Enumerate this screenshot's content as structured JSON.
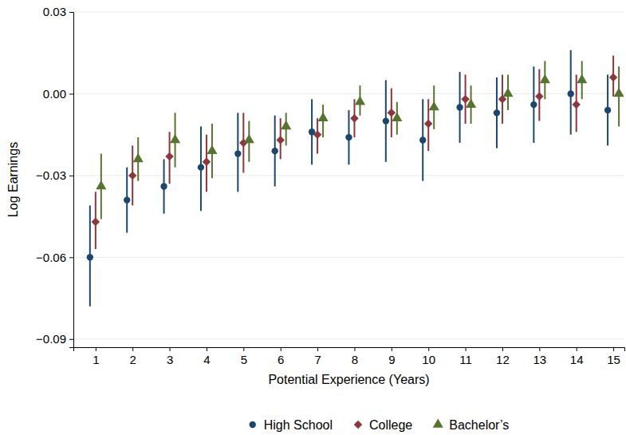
{
  "chart_data": {
    "type": "scatter",
    "x_label": "Potential Experience (Years)",
    "y_label": "Log Earnings",
    "x": [
      1,
      2,
      3,
      4,
      5,
      6,
      7,
      8,
      9,
      10,
      11,
      12,
      13,
      14,
      15
    ],
    "xlim": [
      0.4,
      15.3
    ],
    "xticks": [
      1,
      2,
      3,
      4,
      5,
      6,
      7,
      8,
      9,
      10,
      11,
      12,
      13,
      14,
      15
    ],
    "ylim": [
      -0.093,
      0.03
    ],
    "yticks": [
      {
        "value": -0.09,
        "label": "−0.09"
      },
      {
        "value": -0.06,
        "label": "−0.06"
      },
      {
        "value": -0.03,
        "label": "−0.03"
      },
      {
        "value": 0,
        "label": "0.00"
      },
      {
        "value": 0.03,
        "label": "0.03"
      }
    ],
    "grid": true,
    "legend": "bottom",
    "series": [
      {
        "name": "High School",
        "color": "#1a476f",
        "marker": "circle",
        "values": [
          -0.06,
          -0.039,
          -0.034,
          -0.027,
          -0.022,
          -0.021,
          -0.014,
          -0.016,
          -0.01,
          -0.017,
          -0.005,
          -0.007,
          -0.004,
          0.0,
          -0.006
        ],
        "lower": [
          -0.078,
          -0.051,
          -0.044,
          -0.043,
          -0.036,
          -0.034,
          -0.026,
          -0.026,
          -0.025,
          -0.032,
          -0.018,
          -0.02,
          -0.018,
          -0.015,
          -0.019
        ],
        "upper": [
          -0.041,
          -0.027,
          -0.024,
          -0.012,
          -0.007,
          -0.008,
          -0.002,
          -0.006,
          0.005,
          -0.002,
          0.008,
          0.006,
          0.01,
          0.016,
          0.007
        ]
      },
      {
        "name": "College",
        "color": "#90353b",
        "marker": "diamond",
        "values": [
          -0.047,
          -0.03,
          -0.023,
          -0.025,
          -0.018,
          -0.017,
          -0.015,
          -0.009,
          -0.007,
          -0.011,
          -0.002,
          -0.002,
          -0.001,
          -0.004,
          0.006
        ],
        "lower": [
          -0.057,
          -0.041,
          -0.033,
          -0.036,
          -0.029,
          -0.024,
          -0.022,
          -0.016,
          -0.016,
          -0.021,
          -0.011,
          -0.011,
          -0.01,
          -0.014,
          -0.001
        ],
        "upper": [
          -0.036,
          -0.019,
          -0.014,
          -0.015,
          -0.007,
          -0.009,
          -0.009,
          -0.002,
          0.002,
          -0.002,
          0.007,
          0.007,
          0.009,
          0.007,
          0.014
        ]
      },
      {
        "name": "Bachelor’s",
        "color": "#55752f",
        "marker": "triangle",
        "values": [
          -0.034,
          -0.024,
          -0.017,
          -0.021,
          -0.017,
          -0.012,
          -0.009,
          -0.003,
          -0.009,
          -0.005,
          -0.004,
          0.0,
          0.005,
          0.005,
          0.0
        ],
        "lower": [
          -0.046,
          -0.032,
          -0.027,
          -0.031,
          -0.025,
          -0.019,
          -0.016,
          -0.008,
          -0.015,
          -0.013,
          -0.011,
          -0.006,
          -0.002,
          -0.002,
          -0.012
        ],
        "upper": [
          -0.022,
          -0.016,
          -0.007,
          -0.011,
          -0.01,
          -0.007,
          -0.004,
          0.003,
          -0.003,
          0.003,
          0.003,
          0.007,
          0.012,
          0.012,
          0.01
        ]
      }
    ]
  }
}
